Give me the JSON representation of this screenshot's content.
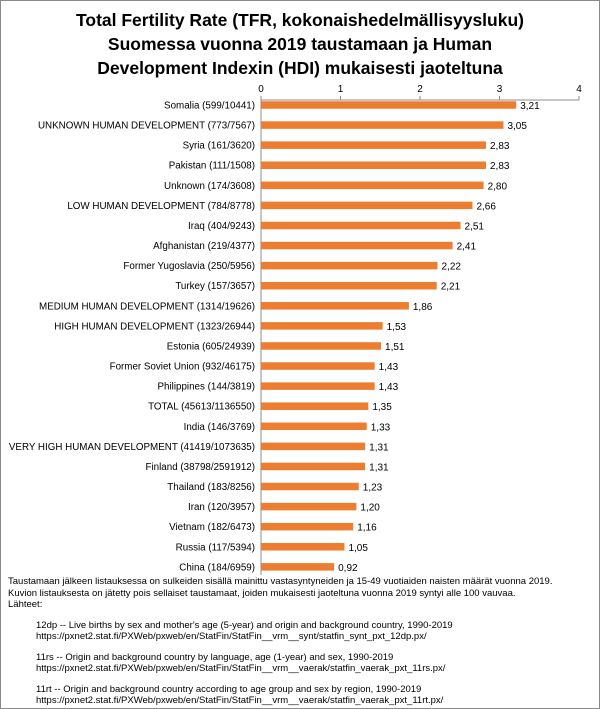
{
  "title_lines": [
    "Total Fertility Rate (TFR, kokonaishedelmällisyysluku)",
    "Suomessa vuonna 2019 taustamaan ja Human",
    "Development Indexin (HDI) mukaisesti  jaoteltuna"
  ],
  "chart_data": {
    "type": "bar",
    "orientation": "horizontal",
    "title": "Total Fertility Rate (TFR, kokonaishedelmällisyysluku) Suomessa vuonna 2019 taustamaan ja Human Development Indexin (HDI) mukaisesti  jaoteltuna",
    "xlabel": "",
    "ylabel": "",
    "xlim": [
      0,
      4
    ],
    "ticks": [
      "0",
      "1",
      "2",
      "3",
      "4"
    ],
    "grid": false,
    "legend": "none",
    "bar_color": "#ed7d31",
    "categories": [
      "Somalia (599/10441)",
      "UNKNOWN HUMAN DEVELOPMENT (773/7567)",
      "Syria (161/3620)",
      "Pakistan (111/1508)",
      "Unknown (174/3608)",
      "LOW HUMAN DEVELOPMENT (784/8778)",
      "Iraq (404/9243)",
      "Afghanistan (219/4377)",
      "Former Yugoslavia (250/5956)",
      "Turkey (157/3657)",
      "MEDIUM HUMAN DEVELOPMENT (1314/19626)",
      "HIGH HUMAN DEVELOPMENT (1323/26944)",
      "Estonia (605/24939)",
      "Former Soviet Union (932/46175)",
      "Philippines (144/3819)",
      "TOTAL (45613/1136550)",
      "India (146/3769)",
      "VERY HIGH HUMAN DEVELOPMENT (41419/1073635)",
      "Finland (38798/2591912)",
      "Thailand (183/8256)",
      "Iran (120/3957)",
      "Vietnam (182/6473)",
      "Russia (117/5394)",
      "China (184/6959)"
    ],
    "values": [
      3.21,
      3.05,
      2.83,
      2.83,
      2.8,
      2.66,
      2.51,
      2.41,
      2.22,
      2.21,
      1.86,
      1.53,
      1.51,
      1.43,
      1.43,
      1.35,
      1.33,
      1.31,
      1.31,
      1.23,
      1.2,
      1.16,
      1.05,
      0.92
    ],
    "value_labels": [
      "3,21",
      "3,05",
      "2,83",
      "2,83",
      "2,80",
      "2,66",
      "2,51",
      "2,41",
      "2,22",
      "2,21",
      "1,86",
      "1,53",
      "1,51",
      "1,43",
      "1,43",
      "1,35",
      "1,33",
      "1,31",
      "1,31",
      "1,23",
      "1,20",
      "1,16",
      "1,05",
      "0,92"
    ]
  },
  "notes": {
    "line1": "Taustamaan jälkeen listauksessa on sulkeiden sisällä mainittu vastasyntyneiden ja 15-49 vuotiaiden naisten määrät vuonna 2019.",
    "line2": "Kuvion listauksesta on jätetty pois sellaiset taustamaat, joiden mukaisesti jaoteltuna vuonna 2019 syntyi alle 100 vauvaa.",
    "line3": "Lähteet:",
    "sources": [
      {
        "desc": "12dp -- Live births by sex and mother's age (5-year) and origin and background country, 1990-2019",
        "url": "https://pxnet2.stat.fi/PXWeb/pxweb/en/StatFin/StatFin__vrm__synt/statfin_synt_pxt_12dp.px/"
      },
      {
        "desc": "11rs -- Origin and background country by language, age (1-year) and sex, 1990-2019",
        "url": "https://pxnet2.stat.fi/PXWeb/pxweb/en/StatFin/StatFin__vrm__vaerak/statfin_vaerak_pxt_11rs.px/"
      },
      {
        "desc": "11rt -- Origin and background country according to age group and sex by region, 1990-2019",
        "url": "https://pxnet2.stat.fi/PXWeb/pxweb/en/StatFin/StatFin__vrm__vaerak/statfin_vaerak_pxt_11rt.px/"
      }
    ]
  }
}
